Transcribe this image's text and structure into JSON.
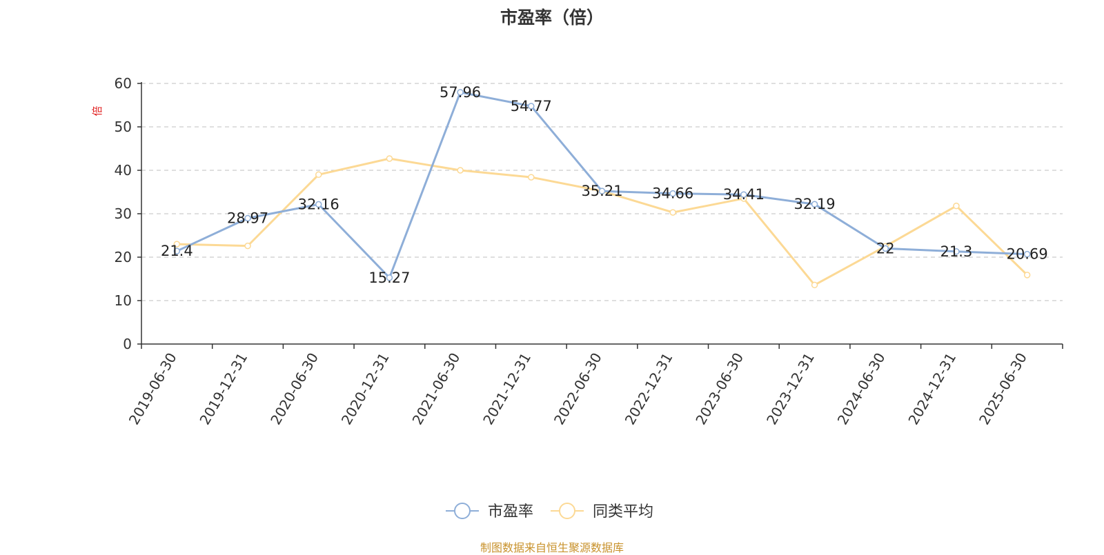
{
  "chart_data": {
    "type": "line",
    "title": "市盈率（倍）",
    "ylabel": "倍",
    "xlabel": "",
    "ylim": [
      0,
      60
    ],
    "yticks": [
      0,
      10,
      20,
      30,
      40,
      50,
      60
    ],
    "grid": true,
    "legend_position": "bottom",
    "categories": [
      "2019-06-30",
      "2019-12-31",
      "2020-06-30",
      "2020-12-31",
      "2021-06-30",
      "2021-12-31",
      "2022-06-30",
      "2022-12-31",
      "2023-06-30",
      "2023-12-31",
      "2024-06-30",
      "2024-12-31",
      "2025-06-30"
    ],
    "series": [
      {
        "name": "市盈率",
        "color": "#8eaed8",
        "show_labels": true,
        "values": [
          21.4,
          28.97,
          32.16,
          15.27,
          57.96,
          54.77,
          35.21,
          34.66,
          34.41,
          32.19,
          22,
          21.3,
          20.69
        ]
      },
      {
        "name": "同类平均",
        "color": "#fcd995",
        "show_labels": false,
        "values": [
          23.0,
          22.6,
          39.0,
          42.7,
          40.0,
          38.4,
          35.2,
          30.3,
          33.5,
          13.6,
          22.5,
          31.8,
          15.9
        ]
      }
    ]
  },
  "footer": {
    "source": "制图数据来自恒生聚源数据库"
  }
}
